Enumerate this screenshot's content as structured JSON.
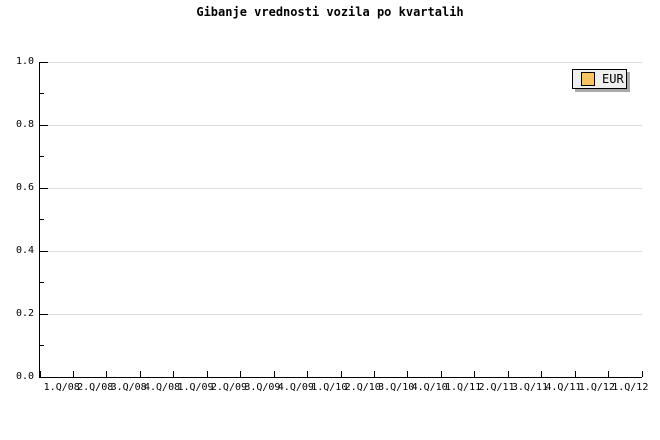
{
  "title": "Gibanje vrednosti vozila po kvartalih",
  "legend": {
    "position": "top-right",
    "items": [
      {
        "label": "EUR",
        "swatch_color": "#FAC464"
      }
    ]
  },
  "colors": {
    "background": "#FFFFFF",
    "axis": "#000000",
    "gridline": "#DEDEDE",
    "legend_background": "#EFEFEF",
    "legend_border": "#000000",
    "legend_shadow": "#A9A9A9",
    "series_eur": "#FAC464"
  },
  "chart_data": {
    "type": "line",
    "title": "Gibanje vrednosti vozila po kvartalih",
    "xlabel": "",
    "ylabel": "",
    "categories": [
      "1.Q/08",
      "2.Q/08",
      "3.Q/08",
      "4.Q/08",
      "1.Q/09",
      "2.Q/09",
      "3.Q/09",
      "4.Q/09",
      "1.Q/10",
      "2.Q/10",
      "3.Q/10",
      "4.Q/10",
      "1.Q/11",
      "2.Q/11",
      "3.Q/11",
      "4.Q/11",
      "1.Q/12",
      "1.Q/12"
    ],
    "series": [
      {
        "name": "EUR",
        "color": "#FAC464",
        "values": []
      }
    ],
    "ylim": [
      0.0,
      1.0
    ],
    "y_ticks": [
      "0.0",
      "0.2",
      "0.4",
      "0.6",
      "0.8",
      "1.0"
    ],
    "y_minor_tick_step": 0.1,
    "grid": true,
    "legend_position": "top-right",
    "plot_is_empty": true
  }
}
